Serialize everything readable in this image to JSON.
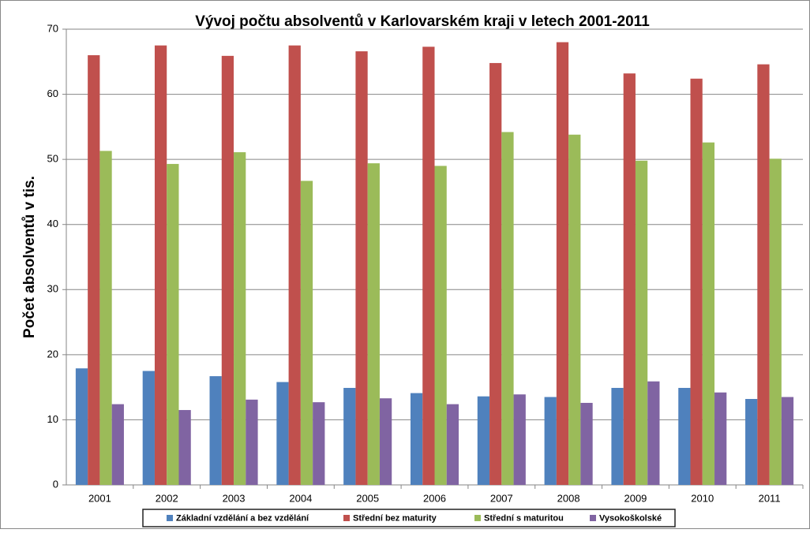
{
  "chart_data": {
    "type": "bar",
    "title": "Vývoj počtu absolventů v Karlovarském kraji v letech 2001-2011",
    "y_label": "Počet absolventů v tis.",
    "categories": [
      "2001",
      "2002",
      "2003",
      "2004",
      "2005",
      "2006",
      "2007",
      "2008",
      "2009",
      "2010",
      "2011"
    ],
    "series": [
      {
        "name": "Základní  vzdělání  a bez vzdělání",
        "color": "#4f81bd",
        "values": [
          17.9,
          17.5,
          16.7,
          15.8,
          14.9,
          14.1,
          13.6,
          13.5,
          14.9,
          14.9,
          13.2
        ]
      },
      {
        "name": "Střední bez maturity",
        "color": "#c0504d",
        "values": [
          66.0,
          67.5,
          65.9,
          67.5,
          66.6,
          67.3,
          64.8,
          68.0,
          63.2,
          62.4,
          64.6
        ]
      },
      {
        "name": "Střední s maturitou",
        "color": "#9bbb59",
        "values": [
          51.3,
          49.3,
          51.1,
          46.7,
          49.4,
          49.0,
          54.2,
          53.8,
          49.8,
          52.6,
          50.1
        ]
      },
      {
        "name": "Vysokoškolské",
        "color": "#8064a2",
        "values": [
          12.4,
          11.5,
          13.1,
          12.7,
          13.3,
          12.4,
          13.9,
          12.6,
          15.9,
          14.2,
          13.5
        ]
      }
    ],
    "ylim": [
      0,
      70
    ],
    "yticks": [
      0,
      10,
      20,
      30,
      40,
      50,
      60,
      70
    ],
    "grid": true,
    "legend": "bottom"
  }
}
